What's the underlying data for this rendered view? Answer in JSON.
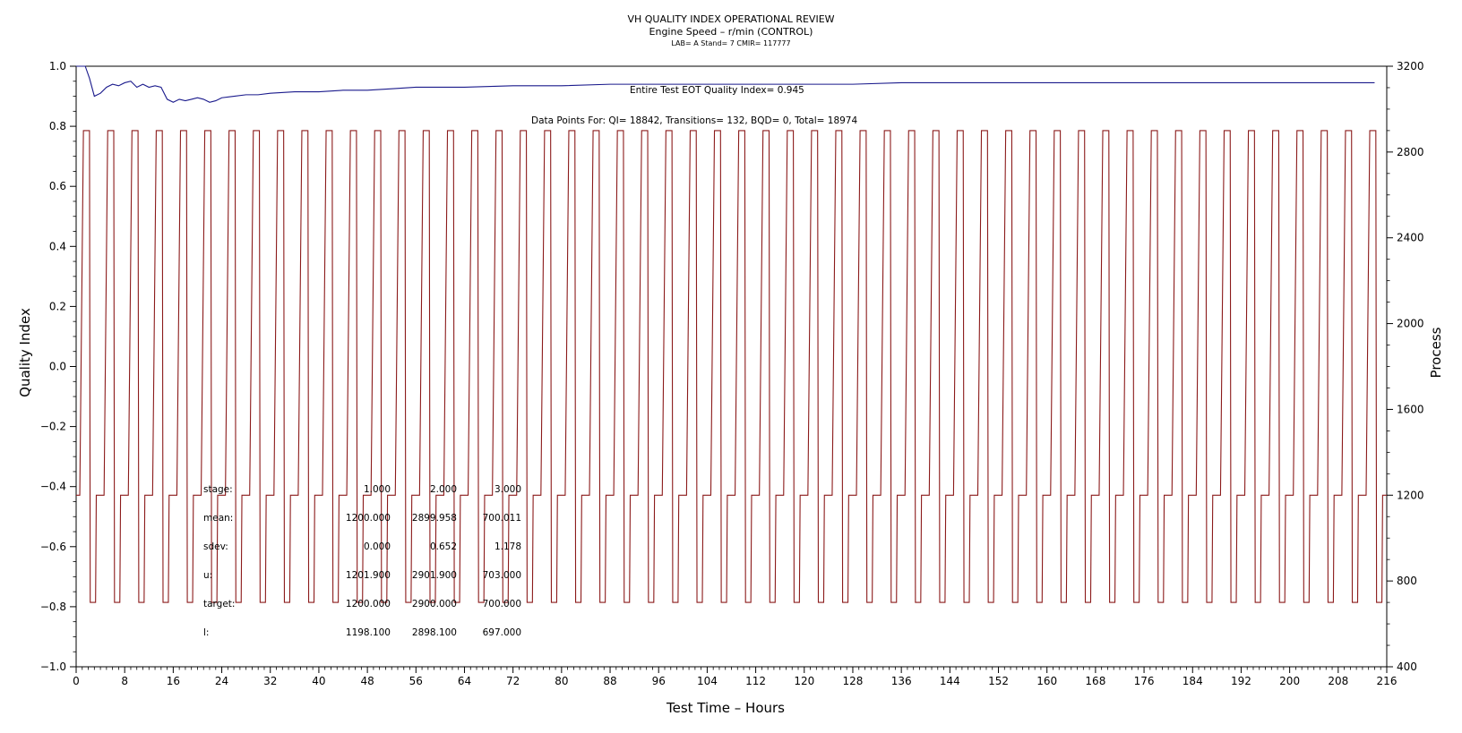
{
  "chart_data": {
    "type": "line",
    "title": "VH QUALITY INDEX OPERATIONAL REVIEW",
    "subtitle": "Engine Speed – r/min (CONTROL)",
    "subtitle2": "LAB= A Stand= 7 CMIR= 117777",
    "xlabel": "Test Time – Hours",
    "ylabel_left": "Quality Index",
    "ylabel_right": "Process",
    "xlim": [
      0,
      216
    ],
    "ylim_left": [
      -1.0,
      1.0
    ],
    "ylim_right": [
      400,
      3200
    ],
    "x_ticks": [
      "0",
      "8",
      "16",
      "24",
      "32",
      "40",
      "48",
      "56",
      "64",
      "72",
      "80",
      "88",
      "96",
      "104",
      "112",
      "120",
      "128",
      "136",
      "144",
      "152",
      "160",
      "168",
      "176",
      "184",
      "192",
      "200",
      "208",
      "216"
    ],
    "y_left_ticks": [
      "1.0",
      "0.8",
      "0.6",
      "0.4",
      "0.2",
      "0.0",
      "−0.2",
      "−0.4",
      "−0.6",
      "−0.8",
      "−1.0"
    ],
    "y_right_ticks": [
      "3200",
      "2800",
      "2400",
      "2000",
      "1600",
      "1200",
      "800",
      "400"
    ],
    "annotations": {
      "eot": "Entire Test EOT Quality Index=   0.945",
      "points": "Data Points For: QI= 18842, Transitions=    132, BQD=     0, Total= 18974"
    },
    "stats": [
      {
        "label": "stage:",
        "values": [
          "1.000",
          "2.000",
          "3.000"
        ]
      },
      {
        "label": "mean:",
        "values": [
          "1200.000",
          "2899.958",
          "700.011"
        ]
      },
      {
        "label": "sdev:",
        "values": [
          "0.000",
          "0.652",
          "1.178"
        ]
      },
      {
        "label": "u:",
        "values": [
          "1201.900",
          "2901.900",
          "703.000"
        ]
      },
      {
        "label": "target:",
        "values": [
          "1200.000",
          "2900.000",
          "700.000"
        ]
      },
      {
        "label": "l:",
        "values": [
          "1198.100",
          "2898.100",
          "697.000"
        ]
      }
    ],
    "series": [
      {
        "axis": "left",
        "color": "#1a1a8c",
        "x": [
          0,
          1.5,
          2.2,
          3,
          4,
          5,
          6,
          7,
          8,
          9,
          10,
          11,
          12,
          13,
          14,
          15,
          16,
          17,
          18,
          19,
          20,
          21,
          22,
          23,
          24,
          26,
          28,
          30,
          32,
          36,
          40,
          44,
          48,
          52,
          56,
          60,
          64,
          72,
          80,
          88,
          96,
          104,
          112,
          120,
          128,
          136,
          144,
          152,
          160,
          168,
          176,
          184,
          192,
          200,
          208,
          214
        ],
        "y": [
          1.0,
          1.0,
          0.96,
          0.9,
          0.91,
          0.93,
          0.94,
          0.935,
          0.945,
          0.95,
          0.93,
          0.94,
          0.93,
          0.935,
          0.93,
          0.89,
          0.88,
          0.89,
          0.885,
          0.89,
          0.895,
          0.89,
          0.88,
          0.885,
          0.895,
          0.9,
          0.905,
          0.905,
          0.91,
          0.915,
          0.915,
          0.92,
          0.92,
          0.925,
          0.93,
          0.93,
          0.93,
          0.935,
          0.935,
          0.94,
          0.94,
          0.94,
          0.94,
          0.94,
          0.94,
          0.945,
          0.945,
          0.945,
          0.945,
          0.945,
          0.945,
          0.945,
          0.945,
          0.945,
          0.945,
          0.945
        ]
      },
      {
        "axis": "right",
        "color": "#8b1a1a",
        "pattern": "repeating cycle: 1200 r/min, ramp to 2900 r/min, hold, drop to 700 r/min, return to 1200 r/min",
        "levels": [
          1200,
          2900,
          700
        ],
        "cycle_hours": 4,
        "cycle_starts": [
          0,
          4,
          8,
          12,
          16,
          20,
          24,
          28,
          32,
          36,
          40,
          44,
          48,
          52,
          56,
          60,
          64,
          68,
          72,
          76,
          80,
          84,
          88,
          92,
          96,
          100,
          104,
          108,
          112,
          116,
          120,
          124,
          128,
          132,
          136,
          140,
          144,
          148,
          152,
          156,
          160,
          164,
          168,
          172,
          176,
          180,
          184,
          188,
          192,
          196,
          200,
          204,
          208,
          212
        ]
      }
    ]
  }
}
